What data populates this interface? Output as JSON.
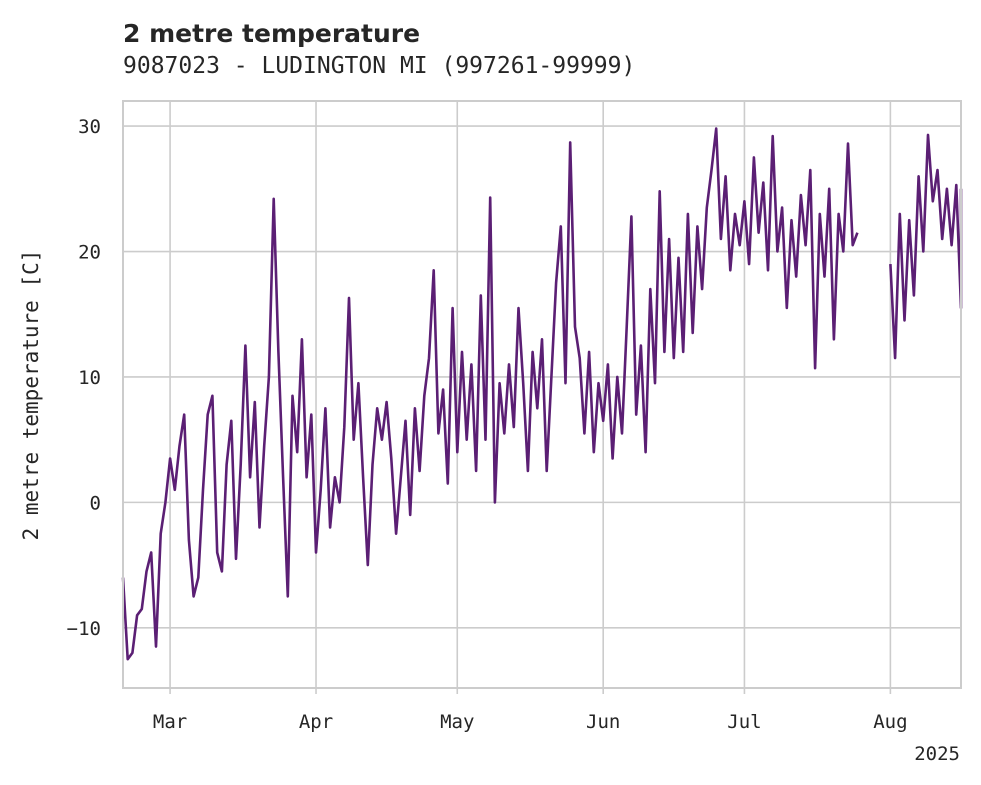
{
  "chart_data": {
    "type": "line",
    "title": "2 metre temperature",
    "subtitle": "9087023 - LUDINGTON  MI (997261-99999)",
    "xlabel": "",
    "ylabel": "2 metre temperature [C]",
    "x_range": [
      "2025-02-19",
      "2025-08-16"
    ],
    "ylim": [
      -14.8,
      32.0
    ],
    "y_ticks": [
      -10,
      0,
      10,
      20,
      30
    ],
    "y_tick_labels": [
      "−10",
      "0",
      "10",
      "20",
      "30"
    ],
    "x_ticks": [
      "2025-03-01",
      "2025-04-01",
      "2025-05-01",
      "2025-06-01",
      "2025-07-01",
      "2025-08-01"
    ],
    "x_tick_labels": [
      "Mar",
      "Apr",
      "May",
      "Jun",
      "Jul",
      "Aug"
    ],
    "x_offset_label": "2025",
    "grid": true,
    "color": "#5b1f74",
    "series": [
      {
        "segments": [
          [
            [
              "2025-02-19",
              -6
            ],
            [
              "2025-02-20",
              -12.5
            ],
            [
              "2025-02-21",
              -12
            ],
            [
              "2025-02-22",
              -9
            ],
            [
              "2025-02-23",
              -8.5
            ],
            [
              "2025-02-24",
              -5.5
            ],
            [
              "2025-02-25",
              -4
            ],
            [
              "2025-02-26",
              -11.5
            ],
            [
              "2025-02-27",
              -2.5
            ],
            [
              "2025-02-28",
              0
            ],
            [
              "2025-03-01",
              3.5
            ],
            [
              "2025-03-02",
              1
            ],
            [
              "2025-03-03",
              4.5
            ],
            [
              "2025-03-04",
              7
            ],
            [
              "2025-03-05",
              -3
            ],
            [
              "2025-03-06",
              -7.5
            ],
            [
              "2025-03-07",
              -6
            ],
            [
              "2025-03-08",
              1
            ],
            [
              "2025-03-09",
              7
            ],
            [
              "2025-03-10",
              8.5
            ],
            [
              "2025-03-11",
              -4
            ],
            [
              "2025-03-12",
              -5.5
            ],
            [
              "2025-03-13",
              3
            ],
            [
              "2025-03-14",
              6.5
            ],
            [
              "2025-03-15",
              -4.5
            ],
            [
              "2025-03-16",
              3
            ],
            [
              "2025-03-17",
              12.5
            ],
            [
              "2025-03-18",
              2
            ],
            [
              "2025-03-19",
              8
            ],
            [
              "2025-03-20",
              -2
            ],
            [
              "2025-03-21",
              4.5
            ],
            [
              "2025-03-22",
              10
            ],
            [
              "2025-03-23",
              24.2
            ],
            [
              "2025-03-24",
              12
            ],
            [
              "2025-03-25",
              2
            ],
            [
              "2025-03-26",
              -7.5
            ],
            [
              "2025-03-27",
              8.5
            ],
            [
              "2025-03-28",
              4
            ],
            [
              "2025-03-29",
              13
            ],
            [
              "2025-03-30",
              2
            ],
            [
              "2025-03-31",
              7
            ],
            [
              "2025-04-01",
              -4
            ],
            [
              "2025-04-02",
              1
            ],
            [
              "2025-04-03",
              7.5
            ],
            [
              "2025-04-04",
              -2
            ],
            [
              "2025-04-05",
              2
            ],
            [
              "2025-04-06",
              0
            ],
            [
              "2025-04-07",
              6
            ],
            [
              "2025-04-08",
              16.3
            ],
            [
              "2025-04-09",
              5
            ],
            [
              "2025-04-10",
              9.5
            ],
            [
              "2025-04-11",
              2
            ],
            [
              "2025-04-12",
              -5
            ],
            [
              "2025-04-13",
              3
            ],
            [
              "2025-04-14",
              7.5
            ],
            [
              "2025-04-15",
              5
            ],
            [
              "2025-04-16",
              8
            ],
            [
              "2025-04-17",
              3.5
            ],
            [
              "2025-04-18",
              -2.5
            ],
            [
              "2025-04-19",
              2
            ],
            [
              "2025-04-20",
              6.5
            ],
            [
              "2025-04-21",
              -1
            ],
            [
              "2025-04-22",
              7.5
            ],
            [
              "2025-04-23",
              2.5
            ],
            [
              "2025-04-24",
              8.5
            ],
            [
              "2025-04-25",
              11.5
            ],
            [
              "2025-04-26",
              18.5
            ],
            [
              "2025-04-27",
              5.5
            ],
            [
              "2025-04-28",
              9
            ],
            [
              "2025-04-29",
              1.5
            ],
            [
              "2025-04-30",
              15.5
            ],
            [
              "2025-05-01",
              4
            ],
            [
              "2025-05-02",
              12
            ],
            [
              "2025-05-03",
              5
            ],
            [
              "2025-05-04",
              11
            ],
            [
              "2025-05-05",
              2.5
            ],
            [
              "2025-05-06",
              16.5
            ],
            [
              "2025-05-07",
              5
            ],
            [
              "2025-05-08",
              24.3
            ],
            [
              "2025-05-09",
              0
            ],
            [
              "2025-05-10",
              9.5
            ],
            [
              "2025-05-11",
              5.5
            ],
            [
              "2025-05-12",
              11
            ],
            [
              "2025-05-13",
              6
            ],
            [
              "2025-05-14",
              15.5
            ],
            [
              "2025-05-15",
              9.5
            ],
            [
              "2025-05-16",
              2.5
            ],
            [
              "2025-05-17",
              12
            ],
            [
              "2025-05-18",
              7.5
            ],
            [
              "2025-05-19",
              13
            ],
            [
              "2025-05-20",
              2.5
            ],
            [
              "2025-05-21",
              10
            ],
            [
              "2025-05-22",
              17.5
            ],
            [
              "2025-05-23",
              22
            ],
            [
              "2025-05-24",
              9.5
            ],
            [
              "2025-05-25",
              28.7
            ],
            [
              "2025-05-26",
              14
            ],
            [
              "2025-05-27",
              11.5
            ],
            [
              "2025-05-28",
              5.5
            ],
            [
              "2025-05-29",
              12
            ],
            [
              "2025-05-30",
              4
            ],
            [
              "2025-05-31",
              9.5
            ],
            [
              "2025-06-01",
              6.5
            ],
            [
              "2025-06-02",
              11
            ],
            [
              "2025-06-03",
              3.5
            ],
            [
              "2025-06-04",
              10
            ],
            [
              "2025-06-05",
              5.5
            ],
            [
              "2025-06-06",
              14
            ],
            [
              "2025-06-07",
              22.8
            ],
            [
              "2025-06-08",
              7
            ],
            [
              "2025-06-09",
              12.5
            ],
            [
              "2025-06-10",
              4
            ],
            [
              "2025-06-11",
              17
            ],
            [
              "2025-06-12",
              9.5
            ],
            [
              "2025-06-13",
              24.8
            ],
            [
              "2025-06-14",
              12
            ],
            [
              "2025-06-15",
              21
            ],
            [
              "2025-06-16",
              11.5
            ],
            [
              "2025-06-17",
              19.5
            ],
            [
              "2025-06-18",
              12
            ],
            [
              "2025-06-19",
              23
            ],
            [
              "2025-06-20",
              13.5
            ],
            [
              "2025-06-21",
              22
            ],
            [
              "2025-06-22",
              17
            ],
            [
              "2025-06-23",
              23.5
            ],
            [
              "2025-06-24",
              26.5
            ],
            [
              "2025-06-25",
              29.8
            ],
            [
              "2025-06-26",
              21
            ],
            [
              "2025-06-27",
              26
            ],
            [
              "2025-06-28",
              18.5
            ],
            [
              "2025-06-29",
              23
            ],
            [
              "2025-06-30",
              20.5
            ],
            [
              "2025-07-01",
              24
            ],
            [
              "2025-07-02",
              19
            ],
            [
              "2025-07-03",
              27.5
            ],
            [
              "2025-07-04",
              21.5
            ],
            [
              "2025-07-05",
              25.5
            ],
            [
              "2025-07-06",
              18.5
            ],
            [
              "2025-07-07",
              29.2
            ],
            [
              "2025-07-08",
              20
            ],
            [
              "2025-07-09",
              23.5
            ],
            [
              "2025-07-10",
              15.5
            ],
            [
              "2025-07-11",
              22.5
            ],
            [
              "2025-07-12",
              18
            ],
            [
              "2025-07-13",
              24.5
            ],
            [
              "2025-07-14",
              20.5
            ],
            [
              "2025-07-15",
              26.5
            ],
            [
              "2025-07-16",
              10.7
            ],
            [
              "2025-07-17",
              23
            ],
            [
              "2025-07-18",
              18
            ],
            [
              "2025-07-19",
              25
            ],
            [
              "2025-07-20",
              13
            ],
            [
              "2025-07-21",
              23
            ],
            [
              "2025-07-22",
              20
            ],
            [
              "2025-07-23",
              28.6
            ],
            [
              "2025-07-24",
              20.5
            ],
            [
              "2025-07-25",
              21.5
            ]
          ],
          [
            [
              "2025-08-01",
              19
            ],
            [
              "2025-08-02",
              11.5
            ],
            [
              "2025-08-03",
              23
            ],
            [
              "2025-08-04",
              14.5
            ],
            [
              "2025-08-05",
              22.5
            ],
            [
              "2025-08-06",
              16.5
            ],
            [
              "2025-08-07",
              26
            ],
            [
              "2025-08-08",
              20
            ],
            [
              "2025-08-09",
              29.3
            ],
            [
              "2025-08-10",
              24
            ],
            [
              "2025-08-11",
              26.5
            ],
            [
              "2025-08-12",
              21
            ],
            [
              "2025-08-13",
              25
            ],
            [
              "2025-08-14",
              20.5
            ],
            [
              "2025-08-15",
              25.3
            ],
            [
              "2025-08-16",
              15.5
            ],
            [
              "2025-08-16",
              25
            ]
          ]
        ]
      }
    ]
  }
}
